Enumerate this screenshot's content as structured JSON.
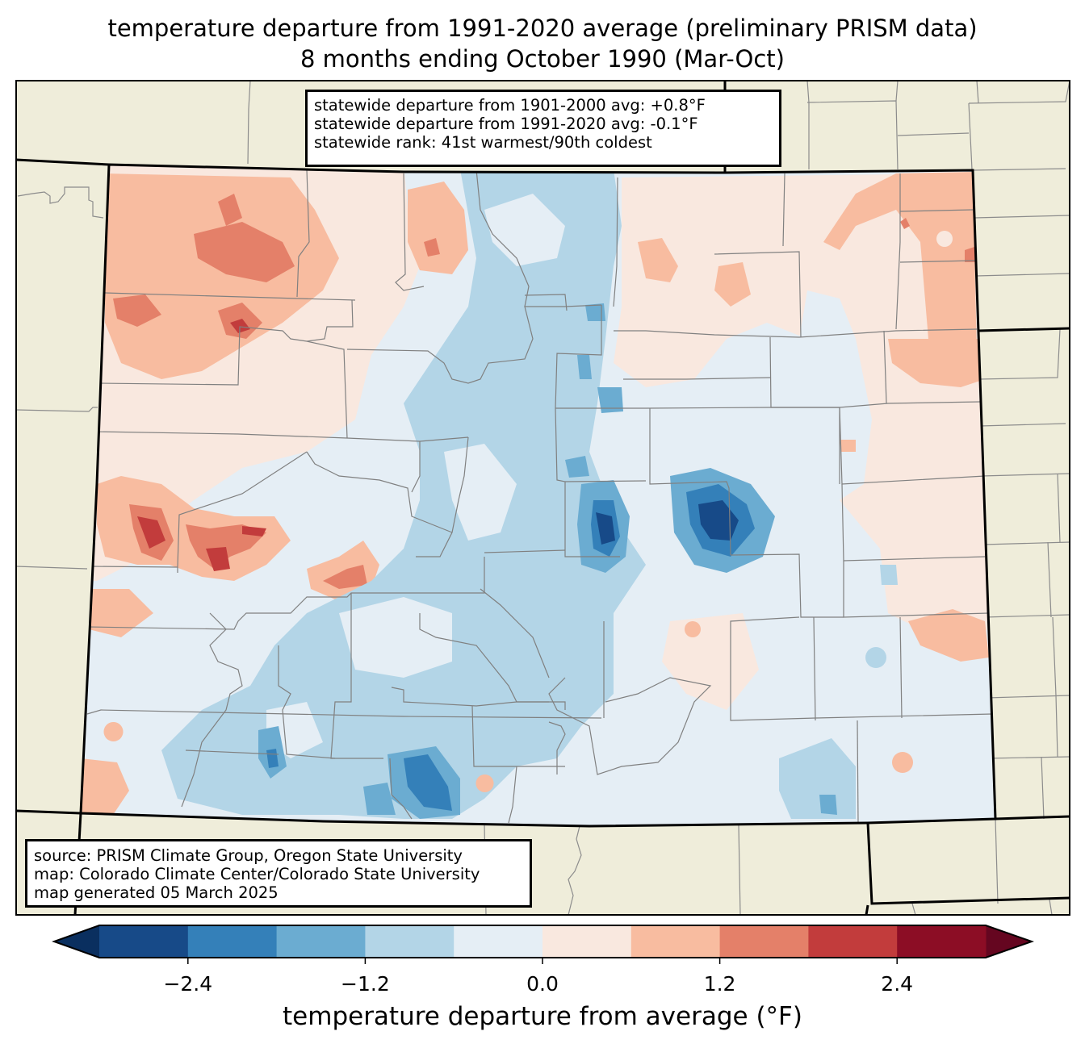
{
  "title_line1": "temperature departure from 1991-2020 average (preliminary PRISM data)",
  "title_line2": "8 months ending October 1990 (Mar-Oct)",
  "stats": {
    "line1": "statewide departure from 1901-2000 avg: +0.8°F",
    "line2": "statewide departure from 1991-2020 avg: -0.1°F",
    "line3": "statewide rank: 41st warmest/90th coldest"
  },
  "source": {
    "line1": "source: PRISM Climate Group, Oregon State University",
    "line2": "map: Colorado Climate Center/Colorado State University",
    "line3": "map generated 05 March 2025"
  },
  "colorbar": {
    "label": "temperature departure from average (°F)",
    "levels": [
      -3.0,
      -2.4,
      -1.8,
      -1.2,
      -0.6,
      0.0,
      0.6,
      1.2,
      1.8,
      2.4,
      3.0
    ],
    "colors": [
      "#174a88",
      "#3480b9",
      "#6bacd1",
      "#b3d5e7",
      "#e5eef5",
      "#f9e8df",
      "#f8bca0",
      "#e48069",
      "#c23c3c",
      "#8c0d25"
    ],
    "under_color": "#0a2f5f",
    "over_color": "#650620",
    "ticks": [
      {
        "value": -2.4,
        "label": "−2.4"
      },
      {
        "value": -1.2,
        "label": "−1.2"
      },
      {
        "value": 0.0,
        "label": "0.0"
      },
      {
        "value": 1.2,
        "label": "1.2"
      },
      {
        "value": 2.4,
        "label": "2.4"
      }
    ]
  },
  "map_colors": {
    "land": "#efedda",
    "state_border": "#000000",
    "county_border": "#808080"
  },
  "chart_data": {
    "type": "heatmap",
    "title": "temperature departure from 1991-2020 average (preliminary PRISM data) — 8 months ending October 1990 (Mar-Oct)",
    "region": "Colorado",
    "variable": "temperature departure from average (°F)",
    "value_range": [
      -3.0,
      3.0
    ],
    "regional_pattern": [
      {
        "area": "northwest",
        "departure_approx": 1.2
      },
      {
        "area": "west-central",
        "departure_approx": 2.4
      },
      {
        "area": "north-central mountains",
        "departure_approx": -0.6
      },
      {
        "area": "central Front Range",
        "departure_approx": -2.4
      },
      {
        "area": "east-central plains",
        "departure_approx": -2.7
      },
      {
        "area": "southwest / San Luis Valley",
        "departure_approx": -1.2
      },
      {
        "area": "northeast",
        "departure_approx": 1.0
      },
      {
        "area": "southeast",
        "departure_approx": 0.3
      }
    ]
  }
}
